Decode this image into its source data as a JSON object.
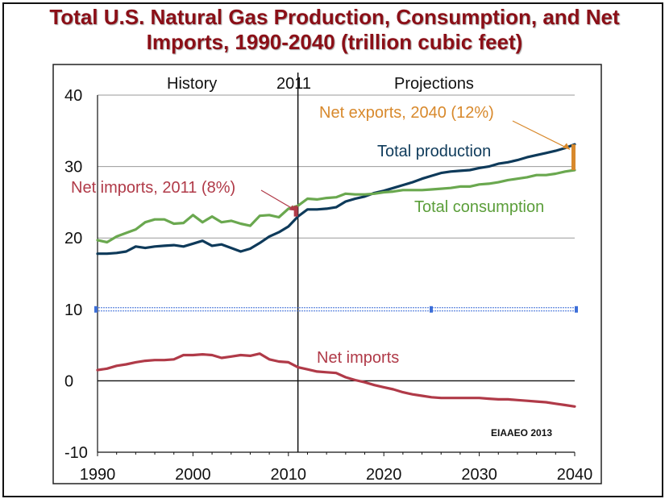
{
  "title": {
    "line1": "Total U.S. Natural Gas Production, Consumption, and Net",
    "line2": "Imports, 1990-2040  (trillion cubic feet)"
  },
  "colors": {
    "title": "#8b0f17",
    "production": "#0e3a5a",
    "consumption": "#6aa84f",
    "net_imports": "#b03a48",
    "net_exports": "#d8892c",
    "annotation_text": "#c7543e",
    "consumption_text": "#5b9e3a",
    "selection_handle": "#3d6fd8"
  },
  "chart_data": {
    "type": "line",
    "title": "Total U.S. Natural Gas Production, Consumption, and Net Imports, 1990-2040  (trillion cubic feet)",
    "xlabel": "",
    "ylabel": "",
    "xlim": [
      1990,
      2040
    ],
    "ylim": [
      -10,
      40
    ],
    "x_ticks": [
      "1990",
      "2000",
      "2010",
      "2020",
      "2030",
      "2040"
    ],
    "y_ticks": [
      "40",
      "30",
      "20",
      "10",
      "0",
      "-10"
    ],
    "grid": "horizontal",
    "region_labels": {
      "history": "History",
      "divider": "2011",
      "projections": "Projections"
    },
    "divider_year": 2011,
    "series": [
      {
        "name": "Total production",
        "color": "#0e3a5a",
        "x": [
          1990,
          1991,
          1992,
          1993,
          1994,
          1995,
          1996,
          1997,
          1998,
          1999,
          2000,
          2001,
          2002,
          2003,
          2004,
          2005,
          2006,
          2007,
          2008,
          2009,
          2010,
          2011,
          2012,
          2013,
          2014,
          2015,
          2016,
          2017,
          2018,
          2019,
          2020,
          2021,
          2022,
          2023,
          2024,
          2025,
          2026,
          2027,
          2028,
          2029,
          2030,
          2031,
          2032,
          2033,
          2034,
          2035,
          2036,
          2037,
          2038,
          2039,
          2040
        ],
        "values": [
          17.8,
          17.8,
          17.9,
          18.1,
          18.8,
          18.6,
          18.8,
          18.9,
          19.0,
          18.8,
          19.2,
          19.6,
          18.9,
          19.1,
          18.6,
          18.1,
          18.5,
          19.3,
          20.2,
          20.8,
          21.6,
          23.0,
          24.0,
          24.0,
          24.1,
          24.3,
          25.1,
          25.5,
          25.8,
          26.3,
          26.6,
          27.0,
          27.4,
          27.8,
          28.3,
          28.7,
          29.1,
          29.3,
          29.4,
          29.5,
          29.8,
          30.0,
          30.4,
          30.6,
          30.9,
          31.3,
          31.6,
          31.9,
          32.2,
          32.6,
          33.1
        ]
      },
      {
        "name": "Total consumption",
        "color": "#6aa84f",
        "x": [
          1990,
          1991,
          1992,
          1993,
          1994,
          1995,
          1996,
          1997,
          1998,
          1999,
          2000,
          2001,
          2002,
          2003,
          2004,
          2005,
          2006,
          2007,
          2008,
          2009,
          2010,
          2011,
          2012,
          2013,
          2014,
          2015,
          2016,
          2017,
          2018,
          2019,
          2020,
          2021,
          2022,
          2023,
          2024,
          2025,
          2026,
          2027,
          2028,
          2029,
          2030,
          2031,
          2032,
          2033,
          2034,
          2035,
          2036,
          2037,
          2038,
          2039,
          2040
        ],
        "values": [
          19.7,
          19.4,
          20.2,
          20.7,
          21.2,
          22.2,
          22.6,
          22.6,
          22.0,
          22.1,
          23.2,
          22.2,
          23.0,
          22.2,
          22.4,
          22.0,
          21.7,
          23.1,
          23.2,
          22.9,
          24.1,
          24.5,
          25.5,
          25.4,
          25.6,
          25.7,
          26.2,
          26.1,
          26.1,
          26.2,
          26.4,
          26.5,
          26.7,
          26.7,
          26.7,
          26.8,
          26.9,
          27.0,
          27.2,
          27.2,
          27.5,
          27.6,
          27.8,
          28.1,
          28.3,
          28.5,
          28.8,
          28.8,
          29.0,
          29.3,
          29.5
        ]
      },
      {
        "name": "Net imports",
        "color": "#b03a48",
        "x": [
          1990,
          1991,
          1992,
          1993,
          1994,
          1995,
          1996,
          1997,
          1998,
          1999,
          2000,
          2001,
          2002,
          2003,
          2004,
          2005,
          2006,
          2007,
          2008,
          2009,
          2010,
          2011,
          2012,
          2013,
          2014,
          2015,
          2016,
          2017,
          2018,
          2019,
          2020,
          2021,
          2022,
          2023,
          2024,
          2025,
          2026,
          2027,
          2028,
          2029,
          2030,
          2031,
          2032,
          2033,
          2034,
          2035,
          2036,
          2037,
          2038,
          2039,
          2040
        ],
        "values": [
          1.5,
          1.7,
          2.1,
          2.3,
          2.6,
          2.8,
          2.9,
          2.9,
          3.0,
          3.6,
          3.6,
          3.7,
          3.6,
          3.2,
          3.4,
          3.6,
          3.5,
          3.8,
          3.0,
          2.7,
          2.6,
          1.9,
          1.6,
          1.3,
          1.2,
          1.1,
          0.5,
          0.1,
          -0.2,
          -0.6,
          -0.9,
          -1.2,
          -1.6,
          -1.9,
          -2.1,
          -2.3,
          -2.4,
          -2.4,
          -2.4,
          -2.4,
          -2.4,
          -2.5,
          -2.6,
          -2.6,
          -2.7,
          -2.8,
          -2.9,
          -3.0,
          -3.2,
          -3.4,
          -3.6
        ]
      }
    ],
    "net_exports_2040": {
      "x": 2040,
      "low": 29.5,
      "high": 33.1
    },
    "annotations": {
      "net_imports_2011": "Net imports, 2011 (8%)",
      "net_exports_2040": "Net exports, 2040 (12%)",
      "total_production": "Total production",
      "total_consumption": "Total consumption",
      "net_imports": "Net imports"
    },
    "source": "EIAAEO 2013"
  }
}
